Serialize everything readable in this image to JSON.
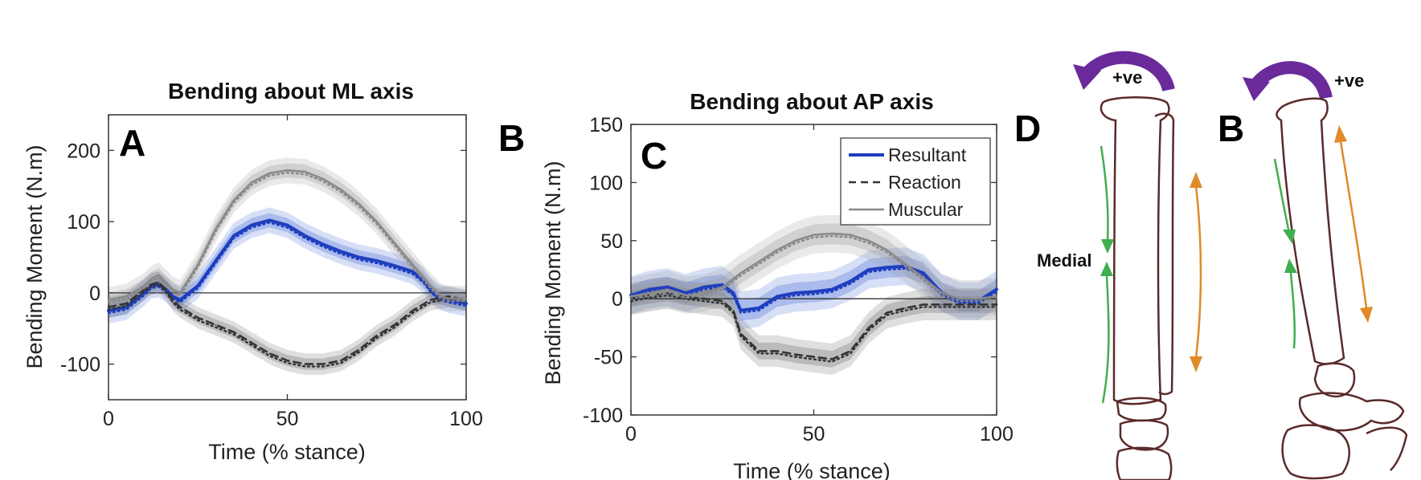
{
  "chart_data": [
    {
      "type": "line",
      "title": "Bending about ML axis",
      "xlabel": "Time (% stance)",
      "ylabel": "Bending Moment (N.m)",
      "xlim": [
        0,
        100
      ],
      "ylim": [
        -150,
        250
      ],
      "xticks": [
        0,
        50,
        100
      ],
      "yticks": [
        -100,
        0,
        100,
        200
      ],
      "panel_label": "A",
      "grid": false,
      "series": [
        {
          "name": "Resultant",
          "color": "#1f3fbf",
          "style": "solid",
          "x": [
            0,
            5,
            10,
            12,
            14,
            16,
            18,
            20,
            25,
            30,
            35,
            40,
            45,
            50,
            55,
            60,
            65,
            70,
            75,
            80,
            85,
            88,
            90,
            92,
            95,
            100
          ],
          "y": [
            -25,
            -20,
            0,
            10,
            12,
            5,
            -5,
            -10,
            10,
            45,
            80,
            95,
            102,
            95,
            80,
            68,
            58,
            50,
            45,
            38,
            30,
            18,
            5,
            -5,
            -10,
            -15
          ]
        },
        {
          "name": "Reaction",
          "color": "#333333",
          "style": "dashed",
          "x": [
            0,
            5,
            10,
            12,
            14,
            16,
            18,
            20,
            25,
            30,
            35,
            40,
            45,
            50,
            55,
            60,
            65,
            70,
            75,
            80,
            85,
            90,
            95,
            100
          ],
          "y": [
            -20,
            -15,
            5,
            12,
            15,
            5,
            -10,
            -20,
            -35,
            -45,
            -55,
            -70,
            -85,
            -95,
            -100,
            -100,
            -95,
            -80,
            -60,
            -45,
            -25,
            -10,
            -5,
            -10
          ]
        },
        {
          "name": "Muscular",
          "color": "#8a8a8a",
          "style": "solid",
          "x": [
            0,
            5,
            10,
            12,
            14,
            16,
            18,
            20,
            25,
            30,
            35,
            40,
            45,
            50,
            55,
            60,
            65,
            70,
            75,
            80,
            85,
            90,
            93,
            95,
            100
          ],
          "y": [
            -10,
            -5,
            10,
            20,
            25,
            15,
            5,
            0,
            40,
            90,
            130,
            155,
            168,
            172,
            170,
            160,
            145,
            125,
            100,
            70,
            40,
            10,
            -5,
            -8,
            -8
          ]
        }
      ]
    },
    {
      "type": "line",
      "title": "Bending about AP axis",
      "xlabel": "Time (% stance)",
      "ylabel": "Bending Moment (N.m)",
      "xlim": [
        0,
        100
      ],
      "ylim": [
        -100,
        150
      ],
      "xticks": [
        0,
        50,
        100
      ],
      "yticks": [
        -100,
        -50,
        0,
        50,
        100,
        150
      ],
      "panel_label": "C",
      "grid": false,
      "legend_position": "top-right",
      "series": [
        {
          "name": "Resultant",
          "color": "#1f3fbf",
          "style": "solid",
          "x": [
            0,
            5,
            10,
            15,
            20,
            25,
            28,
            30,
            35,
            40,
            45,
            50,
            55,
            60,
            65,
            70,
            75,
            80,
            85,
            90,
            95,
            100
          ],
          "y": [
            3,
            8,
            10,
            5,
            10,
            12,
            5,
            -10,
            -8,
            2,
            5,
            6,
            8,
            15,
            25,
            27,
            28,
            22,
            5,
            -2,
            -2,
            8
          ]
        },
        {
          "name": "Reaction",
          "color": "#333333",
          "style": "dashed",
          "x": [
            0,
            5,
            10,
            15,
            20,
            25,
            28,
            30,
            35,
            40,
            45,
            50,
            55,
            60,
            65,
            70,
            75,
            80,
            85,
            90,
            95,
            100
          ],
          "y": [
            0,
            3,
            5,
            2,
            0,
            -2,
            -10,
            -30,
            -45,
            -45,
            -48,
            -50,
            -52,
            -45,
            -25,
            -12,
            -8,
            -5,
            -5,
            -5,
            -5,
            -5
          ]
        },
        {
          "name": "Muscular",
          "color": "#8a8a8a",
          "style": "solid",
          "x": [
            0,
            5,
            10,
            15,
            20,
            25,
            30,
            35,
            40,
            45,
            50,
            55,
            60,
            65,
            70,
            75,
            80,
            85,
            90,
            95,
            100
          ],
          "y": [
            2,
            5,
            8,
            3,
            5,
            10,
            22,
            32,
            42,
            50,
            55,
            56,
            55,
            50,
            42,
            30,
            18,
            5,
            0,
            0,
            2
          ]
        }
      ]
    }
  ],
  "panels": {
    "b_left": "B",
    "d": "D",
    "b_right": "B"
  },
  "annotations": {
    "positive_left": "+ve",
    "positive_right": "+ve",
    "medial": "Medial"
  },
  "colors": {
    "purple_arrow": "#6a2a9a",
    "green_arrow": "#3fae4f",
    "orange_arrow": "#e08a2a",
    "bone_outline": "#5a2a2a"
  }
}
